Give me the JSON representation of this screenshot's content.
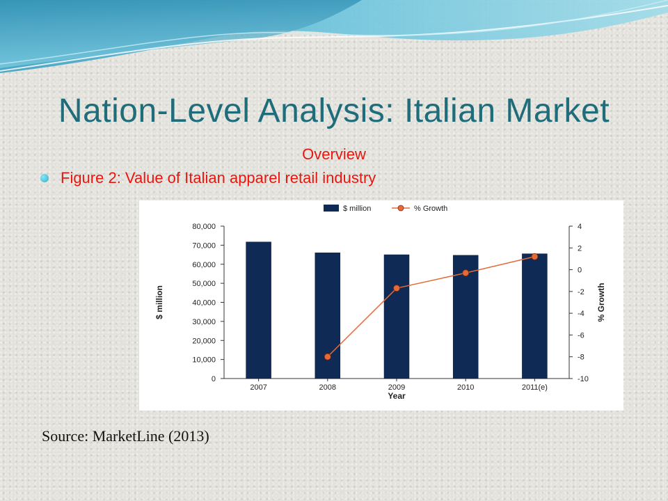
{
  "slide": {
    "title": "Nation-Level Analysis: Italian Market",
    "subtitle": "Overview",
    "bullet": "Figure 2: Value of Italian apparel retail industry",
    "source": "Source: MarketLine (2013)"
  },
  "colors": {
    "title": "#1f6c7a",
    "accent_text": "#e8160f",
    "bar": "#0f2a55",
    "line": "#e36b3a"
  },
  "chart_data": {
    "type": "bar",
    "title": "",
    "xlabel": "Year",
    "ylabel": "$ million",
    "y2label": "% Growth",
    "categories": [
      "2007",
      "2008",
      "2009",
      "2010",
      "2011(e)"
    ],
    "ylim": [
      0,
      80000
    ],
    "y2lim": [
      -10,
      4
    ],
    "yticks": [
      "0",
      "10,000",
      "20,000",
      "30,000",
      "40,000",
      "50,000",
      "60,000",
      "70,000",
      "80,000"
    ],
    "y2ticks": [
      "-10",
      "-8",
      "-6",
      "-4",
      "-2",
      "0",
      "2",
      "4"
    ],
    "legend_position": "top",
    "grid": false,
    "series": [
      {
        "name": "$ million",
        "type": "bar",
        "axis": "left",
        "values": [
          71700,
          66000,
          65000,
          64700,
          65500
        ]
      },
      {
        "name": "% Growth",
        "type": "line",
        "axis": "right",
        "values": [
          null,
          -8.0,
          -1.7,
          -0.3,
          1.2
        ]
      }
    ]
  }
}
